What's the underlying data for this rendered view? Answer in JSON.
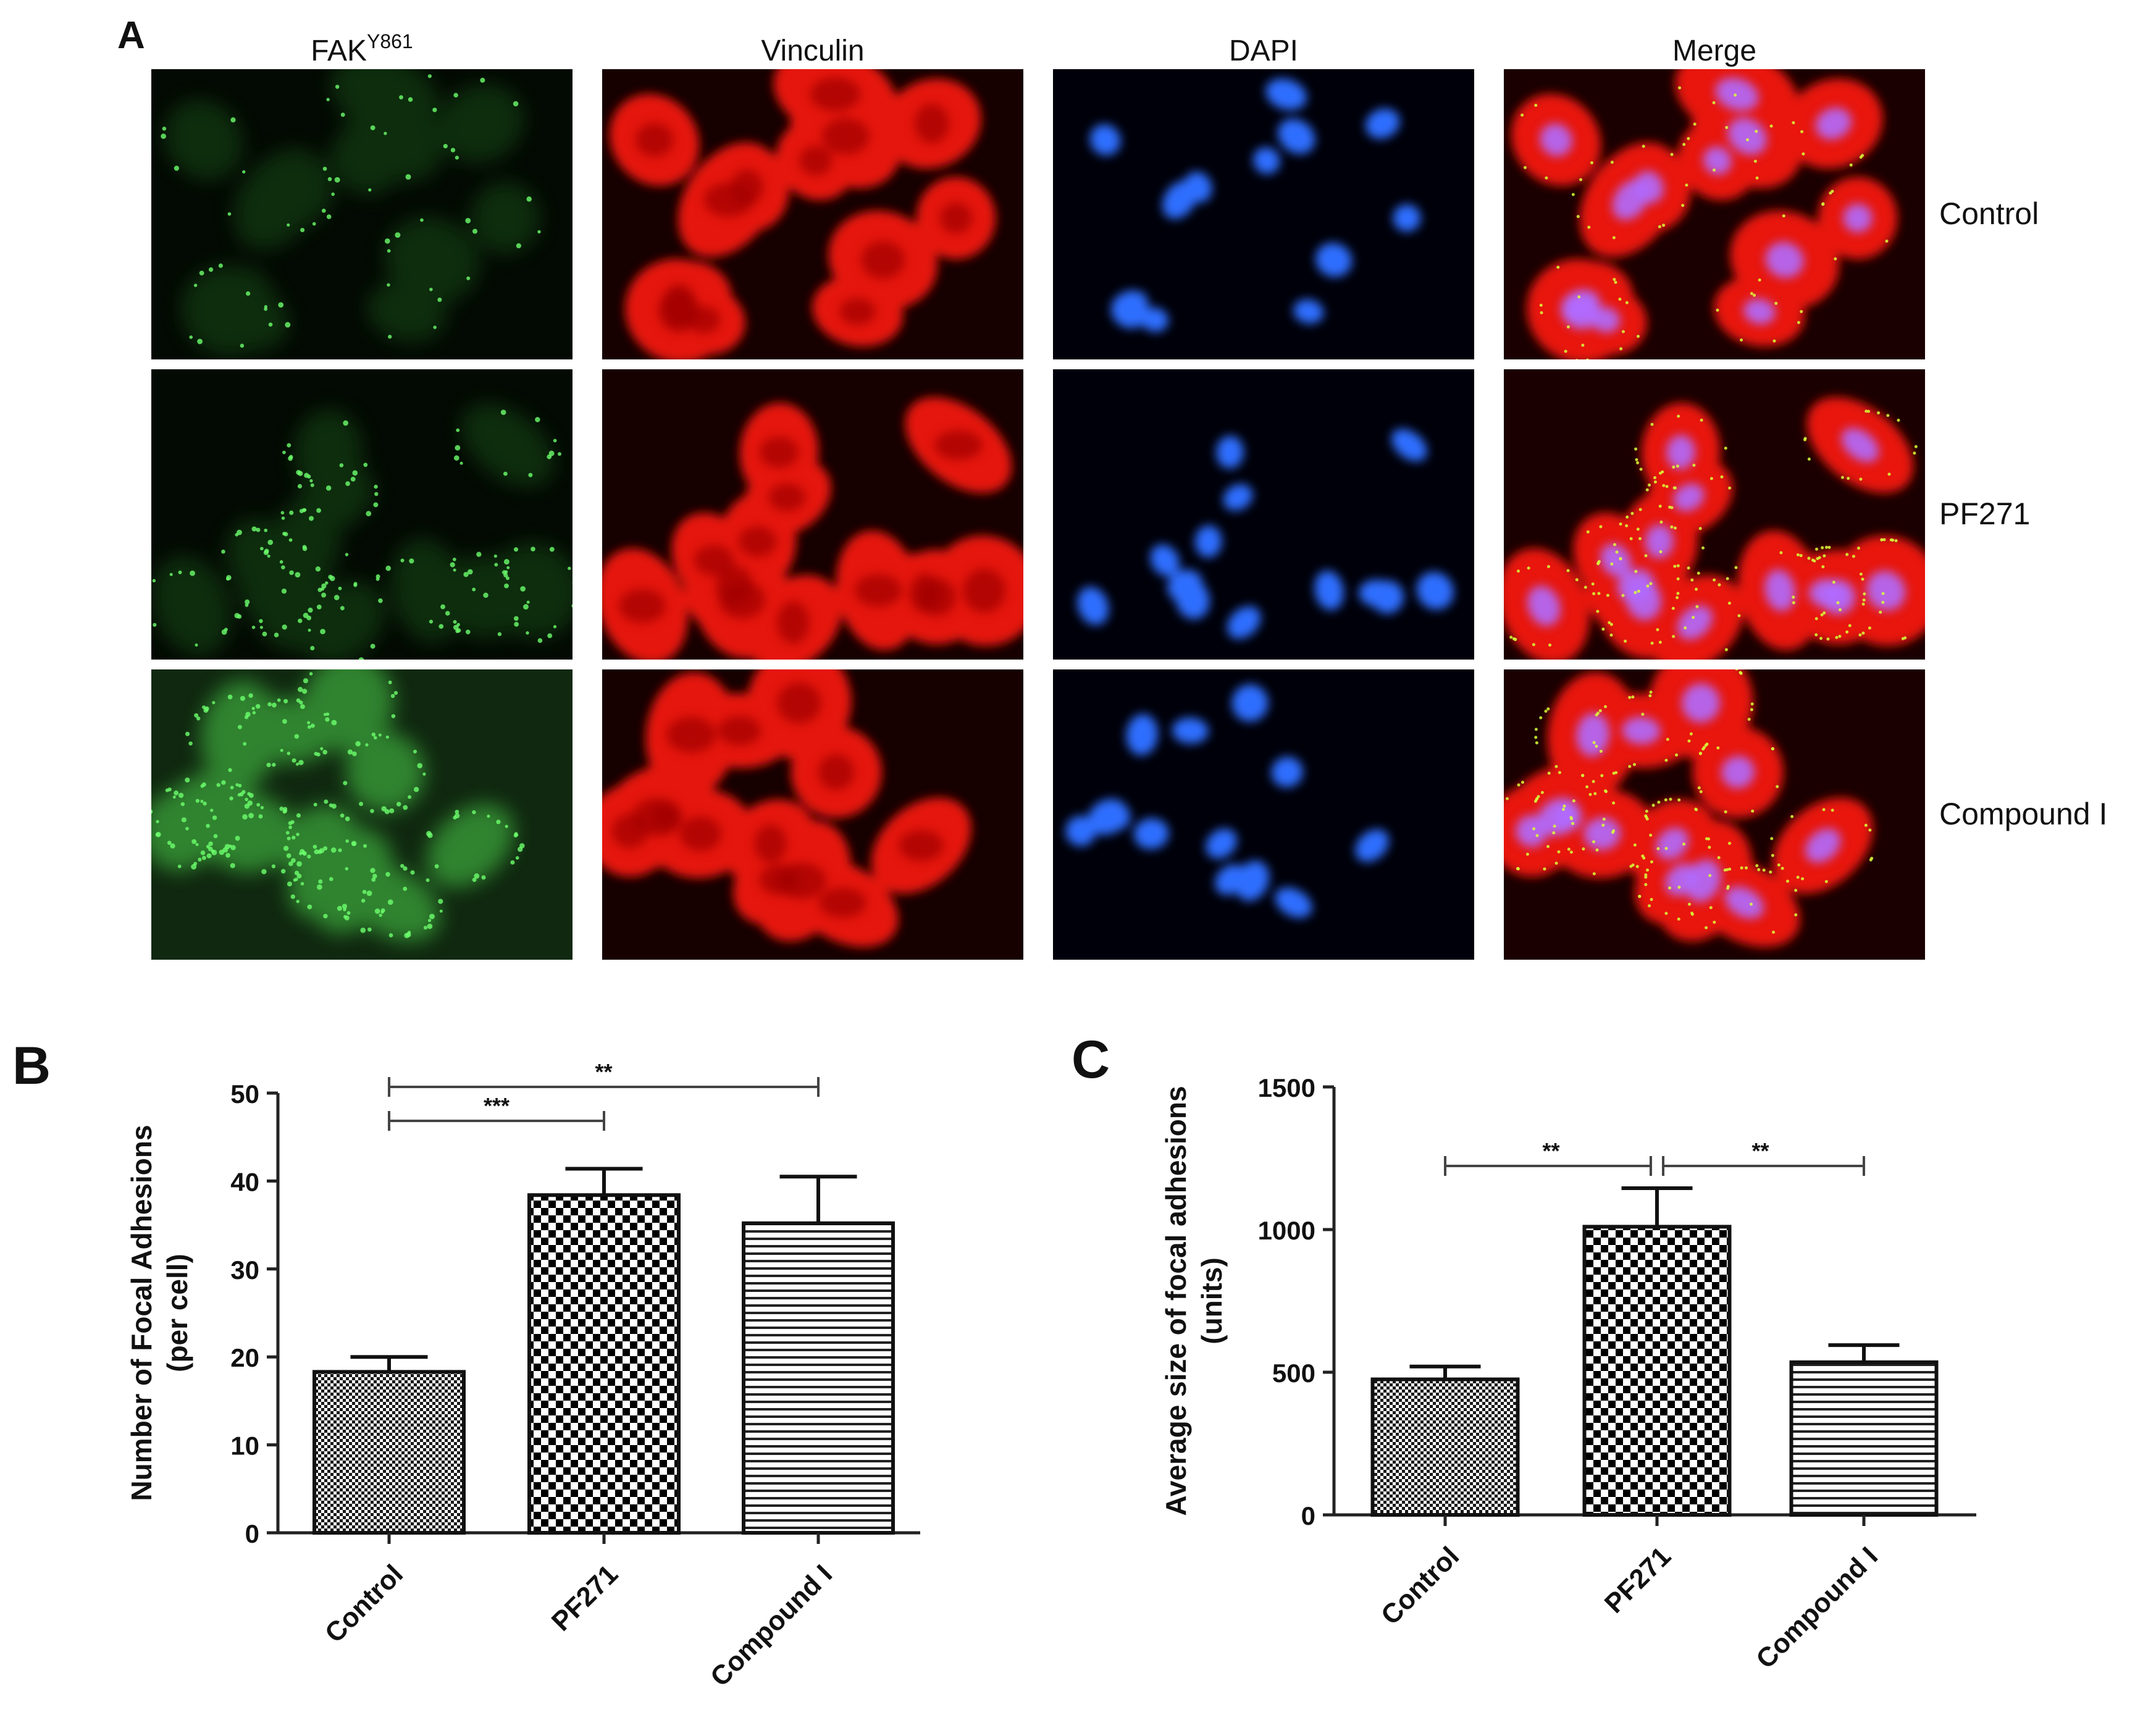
{
  "panel_a": {
    "label": "A",
    "columns": [
      {
        "main": "FAK",
        "sup": "Y861",
        "channel": "green"
      },
      {
        "main": "Vinculin",
        "sup": "",
        "channel": "red"
      },
      {
        "main": "DAPI",
        "sup": "",
        "channel": "blue"
      },
      {
        "main": "Merge",
        "sup": "",
        "channel": "merge"
      }
    ],
    "rows": [
      "Control",
      "PF271",
      "Compound I"
    ]
  },
  "chart_data": [
    {
      "panel": "B",
      "type": "bar",
      "categories": [
        "Control",
        "PF271",
        "Compound I"
      ],
      "values": [
        18.3,
        38.4,
        35.2
      ],
      "errors": [
        1.7,
        3.0,
        5.3
      ],
      "ylabel_line1": "Number of Focal Adhesions",
      "ylabel_line2": "(per cell)",
      "ylim": [
        0,
        50
      ],
      "yticks": [
        0,
        10,
        20,
        30,
        40,
        50
      ],
      "bar_patterns": [
        "fine-check",
        "checker",
        "horizontal-lines"
      ],
      "significance": [
        {
          "from": 0,
          "to": 1,
          "label": "***"
        },
        {
          "from": 0,
          "to": 2,
          "label": "**"
        }
      ]
    },
    {
      "panel": "C",
      "type": "bar",
      "categories": [
        "Control",
        "PF271",
        "Compound I"
      ],
      "values": [
        475,
        1010,
        535
      ],
      "errors": [
        45,
        135,
        60
      ],
      "ylabel_line1": "Average size of focal adhesions",
      "ylabel_line2": "(units)",
      "ylim": [
        0,
        1500
      ],
      "yticks": [
        0,
        500,
        1000,
        1500
      ],
      "bar_patterns": [
        "fine-check",
        "checker",
        "horizontal-lines"
      ],
      "significance": [
        {
          "from": 0,
          "to": 1,
          "label": "**"
        },
        {
          "from": 1,
          "to": 2,
          "label": "**"
        }
      ]
    }
  ]
}
